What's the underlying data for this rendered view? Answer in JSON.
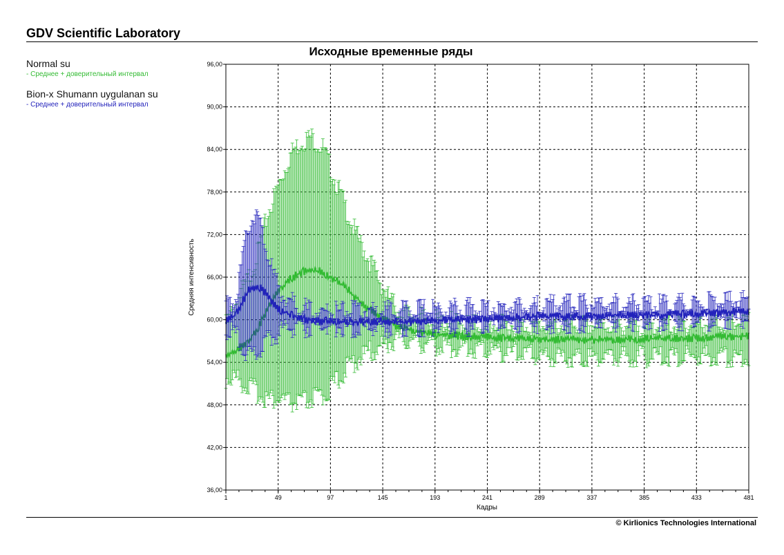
{
  "header": {
    "lab_title": "GDV Scientific Laboratory"
  },
  "footer": {
    "copyright": "© Kirlionics Technologies International"
  },
  "legend": [
    {
      "name": "Normal su",
      "desc": "- Среднее + доверительный интервал",
      "color": "#33bb33"
    },
    {
      "name": "Bion-x Shumann uygulanan su",
      "desc": "- Среднее + доверительный интервал",
      "color": "#2222bb"
    }
  ],
  "chart_data": {
    "type": "line",
    "title": "Исходные временные ряды",
    "xlabel": "Кадры",
    "ylabel": "Средняя интенсивность",
    "xlim": [
      1,
      481
    ],
    "ylim": [
      36,
      96
    ],
    "x_ticks": [
      1,
      49,
      97,
      145,
      193,
      241,
      289,
      337,
      385,
      433,
      481
    ],
    "y_ticks": [
      "36,00",
      "42,00",
      "48,00",
      "54,00",
      "60,00",
      "66,00",
      "72,00",
      "78,00",
      "84,00",
      "90,00",
      "96,00"
    ],
    "grid": true,
    "series": [
      {
        "name": "Normal su",
        "color": "#33bb33",
        "error_bars": true,
        "mean": [
          [
            1,
            55
          ],
          [
            10,
            56
          ],
          [
            20,
            57
          ],
          [
            30,
            59
          ],
          [
            40,
            62
          ],
          [
            50,
            64.5
          ],
          [
            60,
            66
          ],
          [
            70,
            67
          ],
          [
            80,
            67.3
          ],
          [
            90,
            67
          ],
          [
            100,
            66
          ],
          [
            110,
            65
          ],
          [
            120,
            63.5
          ],
          [
            130,
            62
          ],
          [
            140,
            61
          ],
          [
            150,
            60
          ],
          [
            160,
            59.3
          ],
          [
            180,
            58.5
          ],
          [
            200,
            58.2
          ],
          [
            240,
            57.8
          ],
          [
            300,
            57.5
          ],
          [
            360,
            57.5
          ],
          [
            420,
            57.7
          ],
          [
            481,
            58
          ]
        ],
        "upper": [
          [
            1,
            60
          ],
          [
            10,
            63
          ],
          [
            20,
            66
          ],
          [
            30,
            70
          ],
          [
            40,
            76
          ],
          [
            50,
            80
          ],
          [
            60,
            84
          ],
          [
            70,
            86
          ],
          [
            80,
            86.5
          ],
          [
            90,
            85
          ],
          [
            100,
            81
          ],
          [
            110,
            77
          ],
          [
            120,
            73
          ],
          [
            130,
            70
          ],
          [
            140,
            67
          ],
          [
            150,
            64
          ],
          [
            160,
            62
          ],
          [
            180,
            61
          ],
          [
            200,
            60.5
          ],
          [
            240,
            60
          ],
          [
            300,
            60
          ],
          [
            360,
            60
          ],
          [
            420,
            60
          ],
          [
            481,
            60.5
          ]
        ],
        "lower": [
          [
            1,
            51
          ],
          [
            10,
            51
          ],
          [
            20,
            50
          ],
          [
            30,
            49
          ],
          [
            40,
            48
          ],
          [
            50,
            48
          ],
          [
            60,
            47.5
          ],
          [
            70,
            47.5
          ],
          [
            80,
            48
          ],
          [
            90,
            48.5
          ],
          [
            100,
            50
          ],
          [
            110,
            52
          ],
          [
            120,
            53.5
          ],
          [
            130,
            54.5
          ],
          [
            140,
            55
          ],
          [
            150,
            56
          ],
          [
            160,
            56.5
          ],
          [
            180,
            56
          ],
          [
            200,
            55.5
          ],
          [
            240,
            55
          ],
          [
            300,
            54
          ],
          [
            360,
            54
          ],
          [
            420,
            54
          ],
          [
            481,
            54
          ]
        ]
      },
      {
        "name": "Bion-x Shumann uygulanan su",
        "color": "#2222bb",
        "error_bars": true,
        "mean": [
          [
            1,
            60
          ],
          [
            10,
            61
          ],
          [
            15,
            62.5
          ],
          [
            20,
            64
          ],
          [
            25,
            65
          ],
          [
            30,
            65
          ],
          [
            35,
            64.5
          ],
          [
            40,
            63.5
          ],
          [
            45,
            62.5
          ],
          [
            50,
            61.8
          ],
          [
            60,
            61
          ],
          [
            70,
            60.5
          ],
          [
            80,
            60.2
          ],
          [
            100,
            60
          ],
          [
            150,
            60
          ],
          [
            200,
            60.2
          ],
          [
            250,
            60.5
          ],
          [
            300,
            60.8
          ],
          [
            350,
            60.8
          ],
          [
            400,
            61
          ],
          [
            450,
            61.2
          ],
          [
            481,
            61.5
          ]
        ],
        "upper": [
          [
            1,
            62.5
          ],
          [
            10,
            64
          ],
          [
            15,
            68
          ],
          [
            20,
            73
          ],
          [
            25,
            75.5
          ],
          [
            30,
            75.5
          ],
          [
            35,
            73
          ],
          [
            40,
            70
          ],
          [
            45,
            67
          ],
          [
            50,
            65
          ],
          [
            60,
            63.5
          ],
          [
            70,
            62.5
          ],
          [
            80,
            62
          ],
          [
            100,
            62
          ],
          [
            150,
            62
          ],
          [
            200,
            62.3
          ],
          [
            250,
            62.5
          ],
          [
            300,
            62.8
          ],
          [
            350,
            63
          ],
          [
            400,
            63
          ],
          [
            450,
            63.2
          ],
          [
            481,
            63.5
          ]
        ],
        "lower": [
          [
            1,
            58
          ],
          [
            10,
            57
          ],
          [
            15,
            56
          ],
          [
            20,
            54.5
          ],
          [
            25,
            54
          ],
          [
            30,
            54.5
          ],
          [
            35,
            55.5
          ],
          [
            40,
            56.5
          ],
          [
            45,
            57
          ],
          [
            50,
            57.5
          ],
          [
            60,
            58
          ],
          [
            70,
            58.2
          ],
          [
            80,
            58.2
          ],
          [
            100,
            58.2
          ],
          [
            150,
            58.2
          ],
          [
            200,
            58.3
          ],
          [
            250,
            58.5
          ],
          [
            300,
            58.8
          ],
          [
            350,
            59
          ],
          [
            400,
            59
          ],
          [
            450,
            59.2
          ],
          [
            481,
            59.5
          ]
        ]
      }
    ]
  }
}
